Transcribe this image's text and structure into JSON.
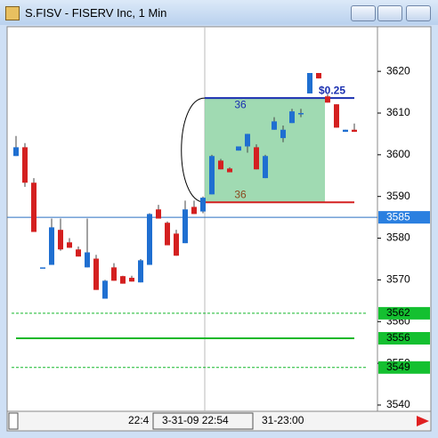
{
  "chart_data": {
    "type": "candlestick",
    "title": "S.FISV - FISERV Inc, 1 Min",
    "open": [
      3599.7,
      3601.8,
      3593.3,
      3573,
      3573.6,
      3582,
      3579,
      3577.3,
      3573,
      3575.1,
      3565.5,
      3573,
      3570.9,
      3570.5,
      3569.4,
      3573.6,
      3586.9,
      3583.7,
      3581.1,
      3578.8,
      3587.5,
      3586.4,
      3590.5,
      3598.6,
      3596.7,
      3601,
      3602,
      3601.8,
      3594.4,
      3606,
      3604,
      3607.6,
      3610,
      3614.7,
      3619.6,
      3614,
      3612.1,
      3605.5,
      3606
    ],
    "high": [
      3604.5,
      3602.8,
      3594.4,
      3573,
      3584.7,
      3584.7,
      3580,
      3578,
      3584.7,
      3576,
      3570,
      3574,
      3571,
      3571,
      3575,
      3586,
      3588,
      3584,
      3582,
      3589,
      3589,
      3590,
      3600,
      3599,
      3597,
      3602,
      3605,
      3602.5,
      3600,
      3609,
      3607,
      3611,
      3611,
      3619.6,
      3619.6,
      3614.5,
      3612.1,
      3606,
      3607.5
    ],
    "low": [
      3599.7,
      3592.3,
      3581.5,
      3573,
      3573.6,
      3577,
      3577.7,
      3575.6,
      3573,
      3567.6,
      3565.5,
      3569.8,
      3569.1,
      3569.6,
      3569.4,
      3573.6,
      3584.7,
      3578.3,
      3575.8,
      3578.8,
      3585.8,
      3586,
      3590.5,
      3596.5,
      3595.8,
      3601,
      3600.5,
      3596.5,
      3594.4,
      3606,
      3603,
      3607.6,
      3609,
      3614.7,
      3618.3,
      3612.5,
      3606.5,
      3605.5,
      3605.5
    ],
    "close": [
      3601.8,
      3593.3,
      3581.5,
      3573,
      3582.6,
      3577.3,
      3577.7,
      3575.6,
      3576.6,
      3567.6,
      3569.8,
      3569.8,
      3569.1,
      3569.6,
      3574.7,
      3585.8,
      3584.7,
      3578.3,
      3575.8,
      3586.9,
      3585.8,
      3589.7,
      3599.7,
      3596.5,
      3595.8,
      3602,
      3605,
      3596.5,
      3599.7,
      3608,
      3606,
      3610.4,
      3610,
      3619.6,
      3618.3,
      3612.5,
      3606.5,
      3606,
      3605.5
    ],
    "up_color": "#1f6fd1",
    "down_color": "#d42020",
    "ylim": [
      3538.5,
      3630.7
    ],
    "yticks": [
      3540,
      3550,
      3560,
      3570,
      3580,
      3590,
      3600,
      3610,
      3620
    ],
    "price_line": 3585,
    "levels": [
      3562,
      3556,
      3549
    ],
    "box": {
      "top": 3613.6,
      "bottom": 3588.6,
      "top_label": "36",
      "bottom_label": "36"
    },
    "annotation": "$0.25",
    "time_labels": [
      "22:4",
      "3-31-09  22:54",
      "31-23:00"
    ]
  }
}
